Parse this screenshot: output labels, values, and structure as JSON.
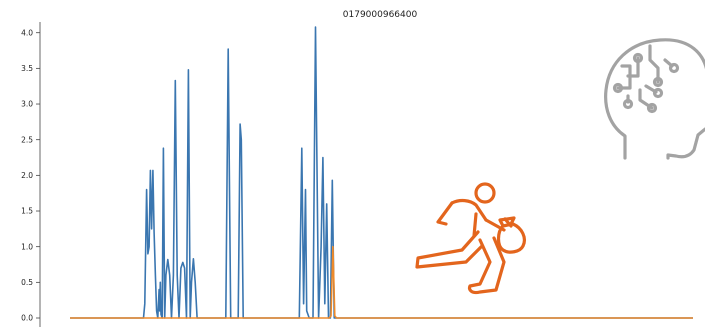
{
  "colors": {
    "series_blue": "#3a76b0",
    "series_orange": "#ee8a2a",
    "thief_icon": "#e3651d",
    "brain_icon": "#a3a3a3",
    "axis": "#444444"
  },
  "icons": [
    "ai-brain-circuit-icon",
    "thief-running-with-money-bag-icon"
  ],
  "chart_data": {
    "type": "line",
    "title": "0179000966400",
    "xlabel": "",
    "ylabel": "",
    "xlim": [
      0,
      1000
    ],
    "ylim": [
      0,
      4.15
    ],
    "yticks": [
      0.0,
      0.5,
      1.0,
      1.5,
      2.0,
      2.5,
      3.0,
      3.5,
      4.0
    ],
    "ytick_labels": [
      "0.0",
      "0.5",
      "1.0",
      "1.5",
      "2.0",
      "2.5",
      "3.0",
      "3.5",
      "4.0"
    ],
    "grid": false,
    "legend": "none",
    "series": [
      {
        "color": "#3a76b0",
        "points": [
          [
            0,
            0
          ],
          [
            118,
            0
          ],
          [
            120,
            0.2
          ],
          [
            123,
            1.8
          ],
          [
            125,
            0.9
          ],
          [
            127,
            1.0
          ],
          [
            129,
            2.07
          ],
          [
            131,
            1.25
          ],
          [
            133,
            2.07
          ],
          [
            135,
            1.2
          ],
          [
            137,
            0.6
          ],
          [
            139,
            0.1
          ],
          [
            141,
            0
          ],
          [
            143,
            0.4
          ],
          [
            144,
            0.1
          ],
          [
            145,
            0.5
          ],
          [
            146,
            0.05
          ],
          [
            148,
            0
          ],
          [
            150,
            2.38
          ],
          [
            152,
            0
          ],
          [
            154,
            0.6
          ],
          [
            157,
            0.82
          ],
          [
            160,
            0.6
          ],
          [
            163,
            0
          ],
          [
            166,
            0.6
          ],
          [
            169,
            3.33
          ],
          [
            172,
            0.6
          ],
          [
            175,
            0
          ],
          [
            178,
            0.7
          ],
          [
            181,
            0.78
          ],
          [
            184,
            0.7
          ],
          [
            187,
            0
          ],
          [
            190,
            3.48
          ],
          [
            193,
            0
          ],
          [
            195,
            0.5
          ],
          [
            198,
            0.83
          ],
          [
            201,
            0.5
          ],
          [
            204,
            0
          ],
          [
            250,
            0
          ],
          [
            254,
            3.77
          ],
          [
            258,
            0
          ],
          [
            270,
            0
          ],
          [
            273,
            2.72
          ],
          [
            275,
            2.5
          ],
          [
            278,
            0
          ],
          [
            368,
            0
          ],
          [
            372,
            2.38
          ],
          [
            375,
            0.2
          ],
          [
            378,
            1.8
          ],
          [
            380,
            0.1
          ],
          [
            384,
            0
          ],
          [
            390,
            0
          ],
          [
            394,
            4.08
          ],
          [
            399,
            0
          ],
          [
            403,
            1.0
          ],
          [
            406,
            2.25
          ],
          [
            409,
            0.2
          ],
          [
            412,
            1.6
          ],
          [
            415,
            0
          ],
          [
            418,
            0
          ],
          [
            421,
            1.93
          ],
          [
            424,
            0
          ],
          [
            1000,
            0
          ]
        ]
      },
      {
        "color": "#ee8a2a",
        "points": [
          [
            0,
            0
          ],
          [
            416,
            0
          ],
          [
            419,
            0.03
          ],
          [
            422,
            1.0
          ],
          [
            425,
            0.03
          ],
          [
            428,
            0
          ],
          [
            1000,
            0
          ]
        ]
      }
    ]
  }
}
